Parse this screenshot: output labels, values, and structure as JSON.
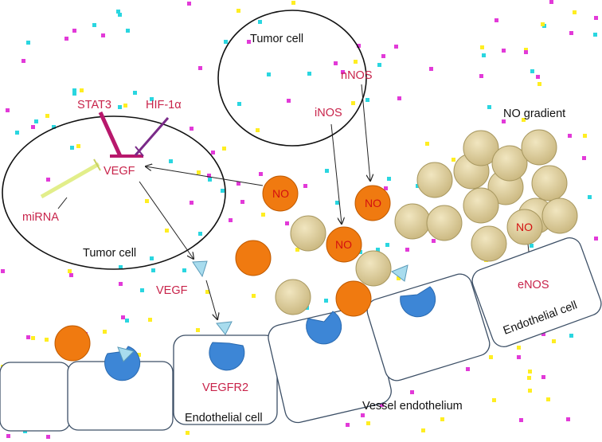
{
  "labels": {
    "tumor_cell_top": "Tumor cell",
    "tumor_cell_left": "Tumor cell",
    "stat3": "STAT3",
    "hif1a": "HIF-1α",
    "vegf_inner": "VEGF",
    "mirna": "miRNA",
    "inos": "iNOS",
    "nnos": "nNOS",
    "no_gradient": "NO gradient",
    "vegf_outer": "VEGF",
    "vegfr2": "VEGFR2",
    "endothelial_cell_left": "Endothelial cell",
    "vessel_endothelium": "Vessel endothelium",
    "endothelial_cell_right": "Endothelial cell",
    "enos": "eNOS",
    "no": "NO"
  },
  "colors": {
    "red_label": "#c8234a",
    "orange_molecule": "#f07a10",
    "tan_sphere": "#d8c895",
    "receptor_blue": "#3d86d6",
    "vegf_triangle": "#a8dcee",
    "stat3_line": "#b8186c",
    "hif_line": "#7a2a88",
    "mirna_line": "#e2ee8a",
    "confetti": [
      "#e23ad8",
      "#2ad6e0",
      "#ffee22"
    ]
  }
}
